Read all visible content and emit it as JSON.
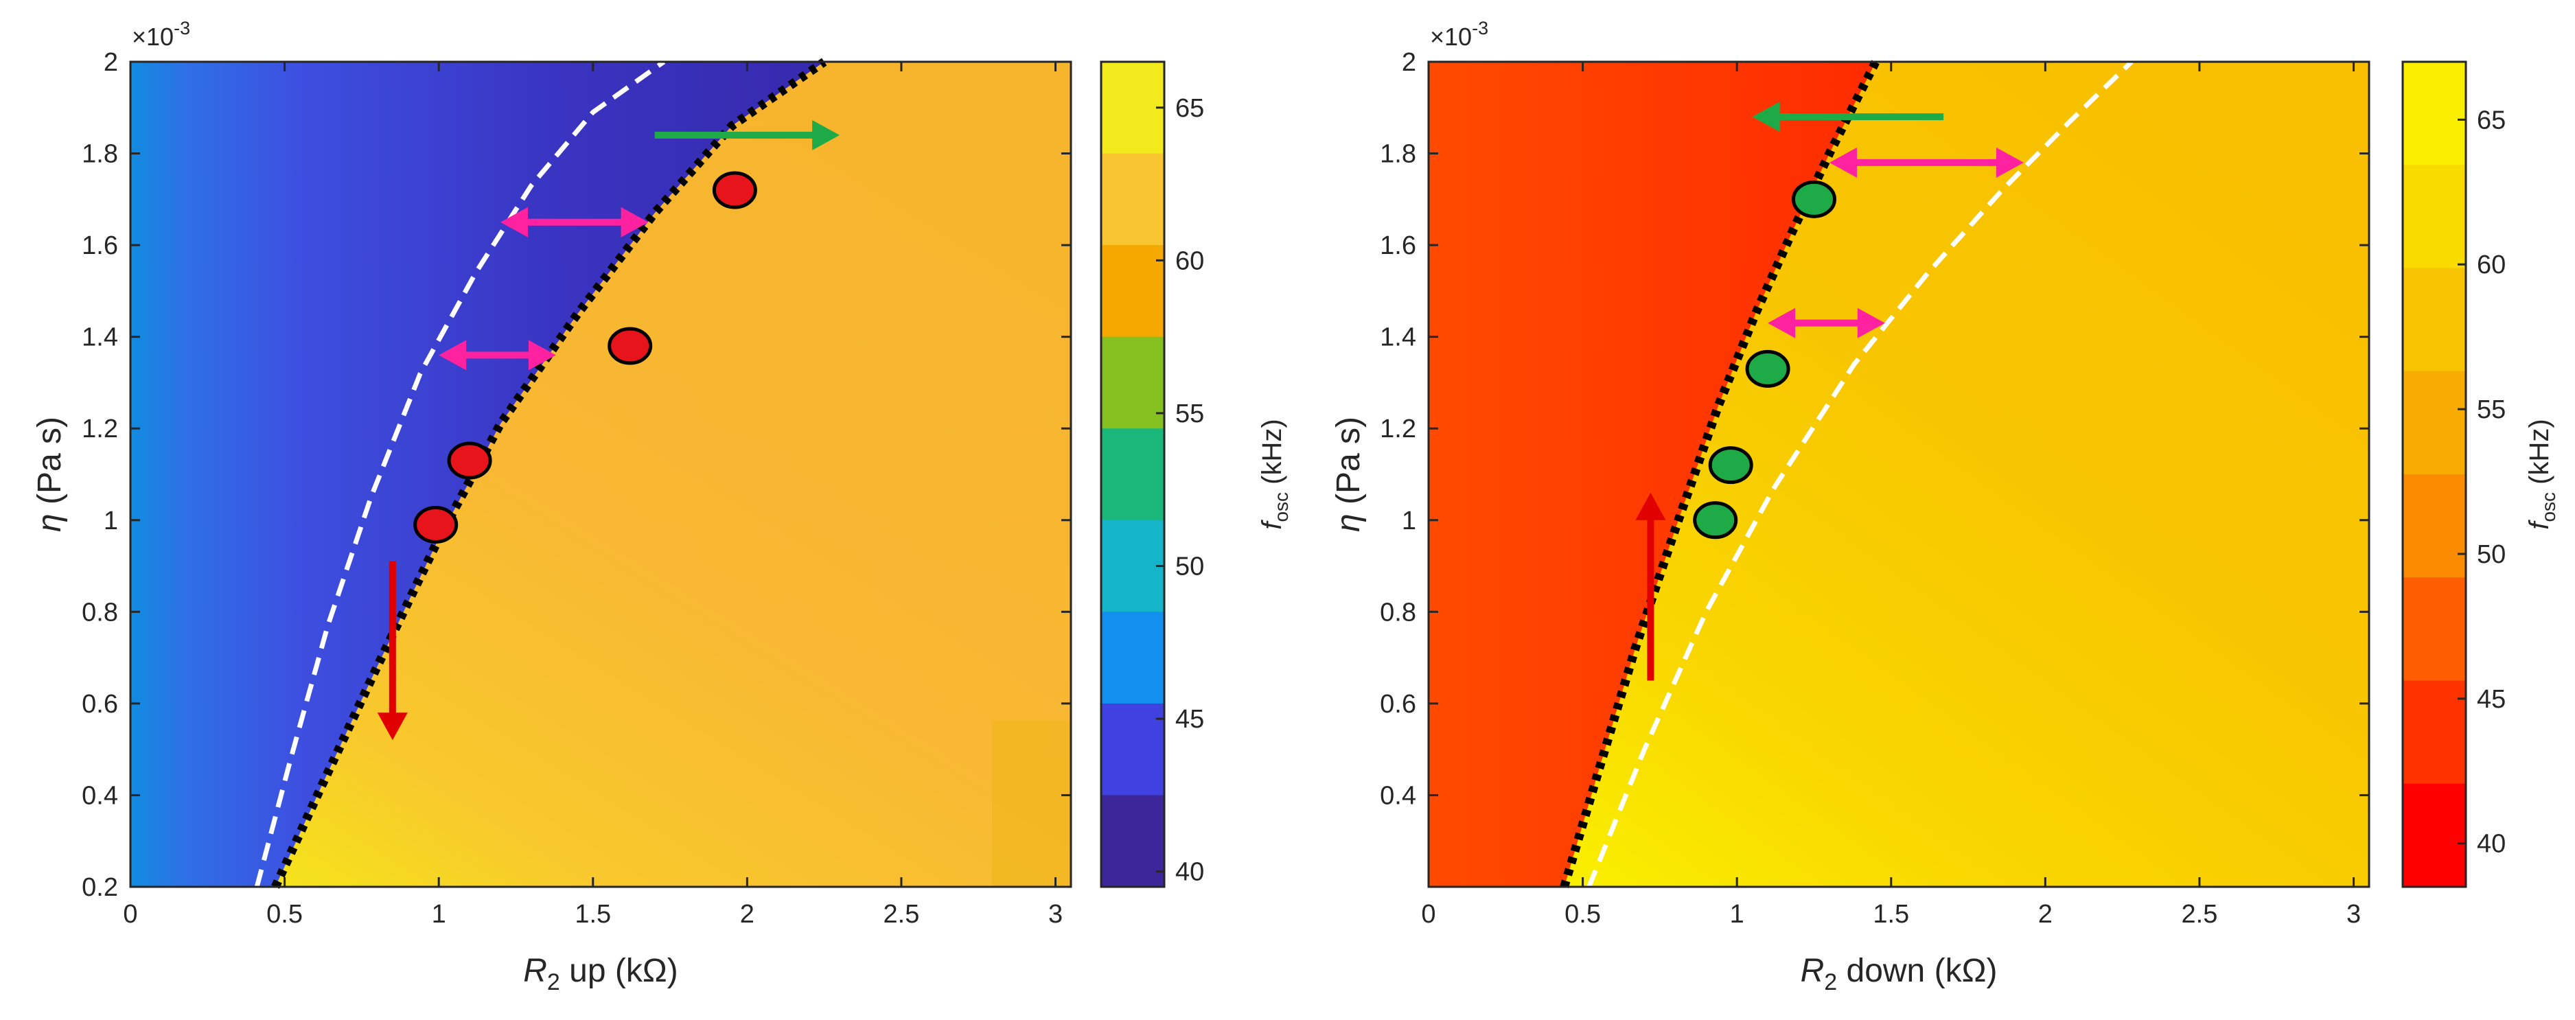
{
  "chart_data": [
    {
      "type": "heatmap",
      "panel": "left",
      "xlabel": {
        "main": "R",
        "sub": "2",
        "rest": " up (kΩ)"
      },
      "ylabel": {
        "main": "η",
        "rest": " (Pa s)"
      },
      "exponent": "×10",
      "exponent_power": "-3",
      "xlim": [
        0,
        3.05
      ],
      "ylim": [
        0.2,
        2.0
      ],
      "xticks": [
        0,
        0.5,
        1,
        1.5,
        2,
        2.5,
        3
      ],
      "xtick_labels": [
        "0",
        "0.5",
        "1",
        "1.5",
        "2",
        "2.5",
        "3"
      ],
      "yticks": [
        0.2,
        0.4,
        0.6,
        0.8,
        1.0,
        1.2,
        1.4,
        1.6,
        1.8,
        2.0
      ],
      "ytick_labels": [
        "0.2",
        "0.4",
        "0.6",
        "0.8",
        "1",
        "1.2",
        "1.4",
        "1.6",
        "1.8",
        "2"
      ],
      "colorbar": {
        "label_main": "f",
        "label_sub": "osc",
        "label_rest": " (kHz)",
        "range": [
          39.5,
          66.5
        ],
        "ticks": [
          40,
          45,
          50,
          55,
          60,
          65
        ],
        "tick_labels": [
          "40",
          "45",
          "50",
          "55",
          "60",
          "65"
        ],
        "colors": [
          "#3b2799",
          "#3f42e0",
          "#1290f0",
          "#14b5c8",
          "#19b87a",
          "#85c021",
          "#f4a800",
          "#f9c530",
          "#f2ea1c"
        ]
      },
      "boundary_black_dotted": {
        "x": [
          0.47,
          0.62,
          0.8,
          1.0,
          1.2,
          1.45,
          1.7,
          1.95,
          2.25
        ],
        "y": [
          0.2,
          0.42,
          0.68,
          0.96,
          1.21,
          1.45,
          1.67,
          1.86,
          2.0
        ]
      },
      "boundary_white_dashed": {
        "x": [
          0.41,
          0.52,
          0.64,
          0.78,
          0.94,
          1.12,
          1.3,
          1.5,
          1.73
        ],
        "y": [
          0.2,
          0.48,
          0.77,
          1.05,
          1.32,
          1.54,
          1.73,
          1.89,
          2.0
        ]
      },
      "markers": {
        "color": "#e8141c",
        "points": [
          {
            "x": 0.99,
            "y": 0.99
          },
          {
            "x": 1.1,
            "y": 1.13
          },
          {
            "x": 1.62,
            "y": 1.38
          },
          {
            "x": 1.96,
            "y": 1.72
          }
        ]
      },
      "arrows": [
        {
          "color": "#e00000",
          "from": [
            0.85,
            0.91
          ],
          "to": [
            0.85,
            0.52
          ]
        },
        {
          "color": "#ff22a0",
          "from": [
            1.0,
            1.36
          ],
          "to": [
            1.38,
            1.36
          ],
          "double": true
        },
        {
          "color": "#ff22a0",
          "from": [
            1.2,
            1.65
          ],
          "to": [
            1.68,
            1.65
          ],
          "double": true
        },
        {
          "color": "#1faa48",
          "from": [
            1.7,
            1.84
          ],
          "to": [
            2.3,
            1.84
          ]
        }
      ]
    },
    {
      "type": "heatmap",
      "panel": "right",
      "xlabel": {
        "main": "R",
        "sub": "2",
        "rest": " down (kΩ)"
      },
      "ylabel": {
        "main": "η",
        "rest": " (Pa s)"
      },
      "exponent": "×10",
      "exponent_power": "-3",
      "xlim": [
        0,
        3.05
      ],
      "ylim": [
        0.2,
        2.0
      ],
      "xticks": [
        0,
        0.5,
        1,
        1.5,
        2,
        2.5,
        3
      ],
      "xtick_labels": [
        "0",
        "0.5",
        "1",
        "1.5",
        "2",
        "2.5",
        "3"
      ],
      "yticks": [
        0.4,
        0.6,
        0.8,
        1.0,
        1.2,
        1.4,
        1.6,
        1.8,
        2.0
      ],
      "ytick_labels": [
        "0.4",
        "0.6",
        "0.8",
        "1",
        "1.2",
        "1.4",
        "1.6",
        "1.8",
        "2"
      ],
      "colorbar": {
        "label_main": "f",
        "label_sub": "osc",
        "label_rest": " (kHz)",
        "range": [
          38.5,
          67.0
        ],
        "ticks": [
          40,
          45,
          50,
          55,
          60,
          65
        ],
        "tick_labels": [
          "40",
          "45",
          "50",
          "55",
          "60",
          "65"
        ],
        "colors": [
          "#ff0000",
          "#ff3300",
          "#fe5e00",
          "#fb8b00",
          "#f8ab00",
          "#f8c300",
          "#f9db00",
          "#fbef00"
        ]
      },
      "boundary_black_dotted": {
        "x": [
          0.44,
          0.55,
          0.67,
          0.8,
          0.94,
          1.06,
          1.18,
          1.3,
          1.45
        ],
        "y": [
          0.2,
          0.45,
          0.72,
          0.98,
          1.25,
          1.45,
          1.63,
          1.8,
          2.0
        ]
      },
      "boundary_white_dashed": {
        "x": [
          0.52,
          0.7,
          0.9,
          1.12,
          1.38,
          1.62,
          1.86,
          2.08,
          2.28
        ],
        "y": [
          0.2,
          0.5,
          0.8,
          1.07,
          1.34,
          1.54,
          1.72,
          1.87,
          2.0
        ]
      },
      "markers": {
        "color": "#1faa48",
        "points": [
          {
            "x": 0.93,
            "y": 1.0
          },
          {
            "x": 0.98,
            "y": 1.12
          },
          {
            "x": 1.1,
            "y": 1.33
          },
          {
            "x": 1.25,
            "y": 1.7
          }
        ]
      },
      "arrows": [
        {
          "color": "#e00000",
          "from": [
            0.72,
            0.65
          ],
          "to": [
            0.72,
            1.06
          ]
        },
        {
          "color": "#ff22a0",
          "from": [
            1.1,
            1.43
          ],
          "to": [
            1.48,
            1.43
          ],
          "double": true
        },
        {
          "color": "#ff22a0",
          "from": [
            1.3,
            1.78
          ],
          "to": [
            1.93,
            1.78
          ],
          "double": true
        },
        {
          "color": "#1faa48",
          "from": [
            1.67,
            1.88
          ],
          "to": [
            1.05,
            1.88
          ]
        }
      ]
    }
  ]
}
